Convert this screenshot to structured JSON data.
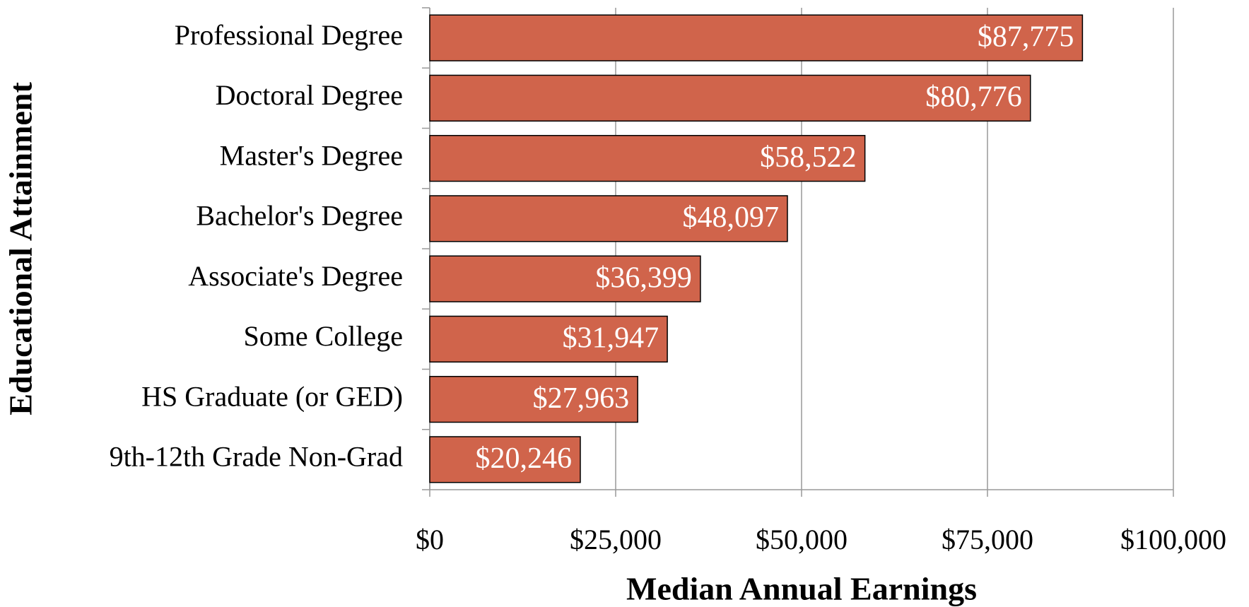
{
  "chart_data": {
    "type": "bar",
    "orientation": "horizontal",
    "x_label": "Median Annual Earnings",
    "y_label": "Educational Attainment",
    "categories": [
      "Professional Degree",
      "Doctoral Degree",
      "Master's Degree",
      "Bachelor's Degree",
      "Associate's Degree",
      "Some College",
      "HS Graduate (or GED)",
      "9th-12th Grade Non-Grad"
    ],
    "values": [
      87775,
      80776,
      58522,
      48097,
      36399,
      31947,
      27963,
      20246
    ],
    "value_labels": [
      "$87,775",
      "$80,776",
      "$58,522",
      "$48,097",
      "$36,399",
      "$31,947",
      "$27,963",
      "$20,246"
    ],
    "color": "#d0644b",
    "xlim": [
      0,
      100000
    ],
    "xticks": [
      {
        "value": 0,
        "label": "$0"
      },
      {
        "value": 25000,
        "label": "$25,000"
      },
      {
        "value": 50000,
        "label": "$50,000"
      },
      {
        "value": 75000,
        "label": "$75,000"
      },
      {
        "value": 100000,
        "label": "$100,000"
      }
    ],
    "grid": true
  }
}
